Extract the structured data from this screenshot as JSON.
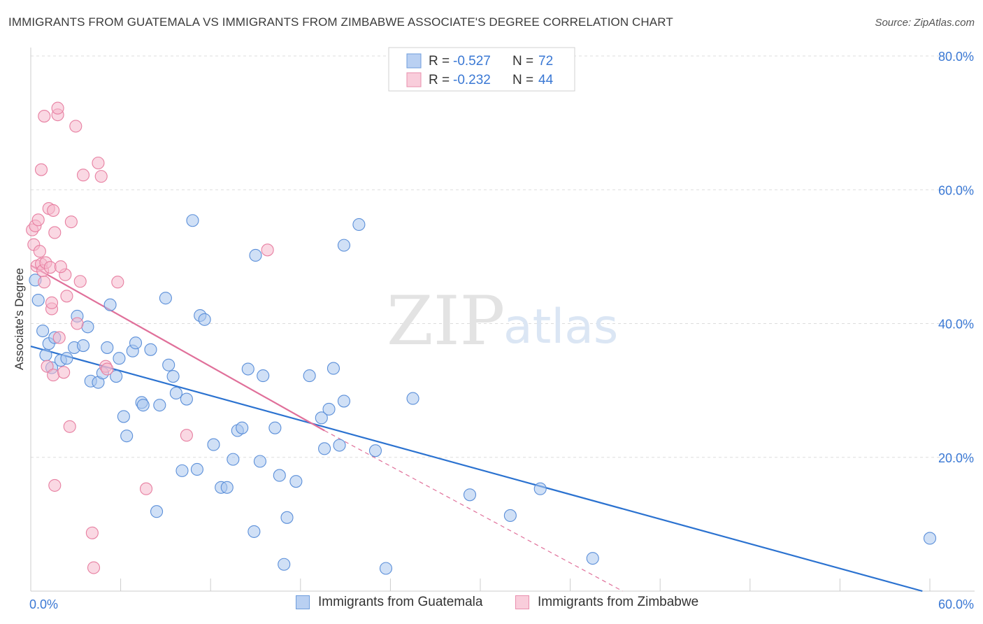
{
  "header": {
    "title": "IMMIGRANTS FROM GUATEMALA VS IMMIGRANTS FROM ZIMBABWE ASSOCIATE'S DEGREE CORRELATION CHART",
    "source": "Source: ZipAtlas.com"
  },
  "watermark": {
    "zip": "ZIP",
    "atlas": "atlas"
  },
  "stats_legend": [
    {
      "r_label": "R =",
      "r_value": "-0.527",
      "n_label": "N =",
      "n_value": "72"
    },
    {
      "r_label": "R =",
      "r_value": "-0.232",
      "n_label": "N =",
      "n_value": "44"
    }
  ],
  "colors": {
    "guatemala_fill": "#a9c6ef",
    "guatemala_stroke": "#5b8fd9",
    "guatemala_line": "#2b72d0",
    "zimbabwe_fill": "#f6b8cc",
    "zimbabwe_stroke": "#e77fa1",
    "zimbabwe_line": "#e0709a",
    "axis_label": "#3a78d4",
    "grid": "#dddddd"
  },
  "chart_data": {
    "type": "scatter",
    "ylabel": "Associate's Degree",
    "xlim": [
      0,
      60
    ],
    "ylim": [
      0,
      80
    ],
    "x_tick_labels": [
      {
        "value": 0,
        "label": "0.0%"
      },
      {
        "value": 60,
        "label": "60.0%"
      }
    ],
    "y_tick_labels": [
      {
        "value": 20,
        "label": "20.0%"
      },
      {
        "value": 40,
        "label": "40.0%"
      },
      {
        "value": 60,
        "label": "60.0%"
      },
      {
        "value": 80,
        "label": "80.0%"
      }
    ],
    "grid": true,
    "series": [
      {
        "name": "Immigrants from Guatemala",
        "color": "#5b8fd9",
        "points": [
          [
            0.3,
            46.5
          ],
          [
            0.5,
            43.5
          ],
          [
            0.8,
            38.9
          ],
          [
            1.0,
            35.3
          ],
          [
            1.2,
            37.0
          ],
          [
            1.6,
            37.9
          ],
          [
            1.4,
            33.4
          ],
          [
            2.0,
            34.5
          ],
          [
            2.4,
            34.8
          ],
          [
            2.9,
            36.4
          ],
          [
            3.1,
            41.1
          ],
          [
            3.5,
            36.7
          ],
          [
            3.8,
            39.5
          ],
          [
            4.0,
            31.4
          ],
          [
            4.5,
            31.2
          ],
          [
            4.8,
            32.6
          ],
          [
            5.1,
            36.4
          ],
          [
            5.3,
            42.8
          ],
          [
            5.7,
            32.1
          ],
          [
            5.9,
            34.8
          ],
          [
            6.2,
            26.1
          ],
          [
            6.4,
            23.2
          ],
          [
            6.8,
            35.9
          ],
          [
            7.0,
            37.1
          ],
          [
            7.4,
            28.2
          ],
          [
            7.5,
            27.8
          ],
          [
            8.0,
            36.1
          ],
          [
            8.4,
            11.9
          ],
          [
            8.6,
            27.8
          ],
          [
            9.0,
            43.8
          ],
          [
            9.2,
            33.8
          ],
          [
            9.5,
            32.1
          ],
          [
            9.7,
            29.6
          ],
          [
            10.1,
            18.0
          ],
          [
            10.4,
            28.7
          ],
          [
            10.8,
            55.4
          ],
          [
            11.1,
            18.2
          ],
          [
            11.3,
            41.2
          ],
          [
            11.6,
            40.6
          ],
          [
            12.2,
            21.9
          ],
          [
            12.7,
            15.5
          ],
          [
            13.1,
            15.5
          ],
          [
            13.5,
            19.7
          ],
          [
            13.8,
            24.0
          ],
          [
            14.1,
            24.4
          ],
          [
            14.5,
            33.2
          ],
          [
            14.9,
            8.9
          ],
          [
            15.0,
            50.2
          ],
          [
            15.3,
            19.4
          ],
          [
            15.5,
            32.2
          ],
          [
            16.3,
            24.4
          ],
          [
            16.6,
            17.3
          ],
          [
            16.9,
            4.0
          ],
          [
            17.1,
            11.0
          ],
          [
            17.7,
            16.4
          ],
          [
            18.6,
            32.2
          ],
          [
            19.4,
            25.9
          ],
          [
            19.6,
            21.3
          ],
          [
            19.9,
            27.2
          ],
          [
            20.2,
            33.3
          ],
          [
            20.6,
            21.8
          ],
          [
            20.9,
            28.4
          ],
          [
            20.9,
            51.7
          ],
          [
            21.9,
            54.8
          ],
          [
            23.0,
            21.0
          ],
          [
            23.7,
            3.4
          ],
          [
            25.5,
            28.8
          ],
          [
            29.3,
            14.4
          ],
          [
            32.0,
            11.3
          ],
          [
            34.0,
            15.3
          ],
          [
            37.5,
            4.9
          ],
          [
            60.0,
            7.9
          ]
        ]
      },
      {
        "name": "Immigrants from Zimbabwe",
        "color": "#e77fa1",
        "points": [
          [
            0.1,
            54.0
          ],
          [
            0.2,
            51.8
          ],
          [
            0.3,
            54.6
          ],
          [
            0.4,
            48.6
          ],
          [
            0.5,
            55.5
          ],
          [
            0.6,
            50.8
          ],
          [
            0.7,
            48.9
          ],
          [
            0.7,
            63.0
          ],
          [
            0.8,
            47.9
          ],
          [
            0.9,
            46.2
          ],
          [
            0.9,
            71.0
          ],
          [
            1.0,
            49.1
          ],
          [
            1.1,
            33.6
          ],
          [
            1.2,
            57.2
          ],
          [
            1.3,
            48.4
          ],
          [
            1.4,
            42.2
          ],
          [
            1.4,
            43.1
          ],
          [
            1.5,
            56.9
          ],
          [
            1.5,
            32.3
          ],
          [
            1.6,
            53.6
          ],
          [
            1.8,
            71.2
          ],
          [
            1.8,
            72.2
          ],
          [
            1.9,
            37.9
          ],
          [
            2.2,
            32.7
          ],
          [
            2.3,
            47.3
          ],
          [
            2.4,
            44.1
          ],
          [
            2.6,
            24.6
          ],
          [
            2.7,
            55.2
          ],
          [
            3.0,
            69.5
          ],
          [
            3.1,
            40.0
          ],
          [
            3.3,
            46.3
          ],
          [
            3.5,
            62.2
          ],
          [
            4.1,
            8.7
          ],
          [
            4.2,
            3.5
          ],
          [
            4.5,
            64.0
          ],
          [
            4.7,
            62.0
          ],
          [
            5.0,
            33.6
          ],
          [
            5.1,
            33.2
          ],
          [
            5.8,
            46.2
          ],
          [
            7.7,
            15.3
          ],
          [
            10.4,
            23.3
          ],
          [
            15.8,
            51.0
          ],
          [
            1.6,
            15.8
          ],
          [
            2.0,
            48.5
          ]
        ]
      }
    ],
    "trend_lines": [
      {
        "series": "Immigrants from Guatemala",
        "x": [
          0,
          59.5
        ],
        "y": [
          36.6,
          0
        ]
      },
      {
        "series": "Immigrants from Zimbabwe",
        "x": [
          0,
          19.6
        ],
        "y": [
          48.7,
          24.0
        ],
        "dashed_extension_to": [
          39.5,
          0
        ]
      }
    ]
  }
}
